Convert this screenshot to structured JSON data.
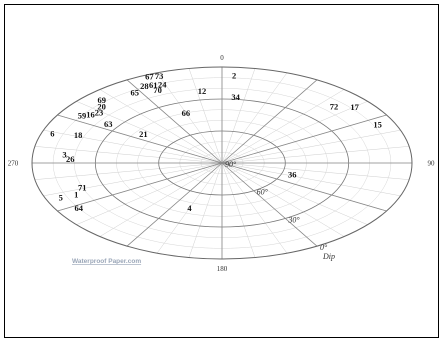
{
  "chart_data": {
    "type": "scatter",
    "projection": "polar stereonet (perspective)",
    "azimuth_labels": [
      {
        "text": "0",
        "az": 0
      },
      {
        "text": "90",
        "az": 90
      },
      {
        "text": "180",
        "az": 180
      },
      {
        "text": "270",
        "az": 270
      }
    ],
    "dip_labels": [
      {
        "text": "0°",
        "dip": 0
      },
      {
        "text": "30°",
        "dip": 30
      },
      {
        "text": "60°",
        "dip": 60
      },
      {
        "text": "90°",
        "dip": 90
      }
    ],
    "dip_axis_title": "Dip",
    "watermark": "Waterproof Paper.com",
    "points": [
      {
        "label": "2",
        "az": 4,
        "dip": 8
      },
      {
        "label": "12",
        "az": 352,
        "dip": 22
      },
      {
        "label": "34",
        "az": 6,
        "dip": 28
      },
      {
        "label": "66",
        "az": 340,
        "dip": 40
      },
      {
        "label": "72",
        "az": 45,
        "dip": 15
      },
      {
        "label": "17",
        "az": 50,
        "dip": 8
      },
      {
        "label": "15",
        "az": 64,
        "dip": 8
      },
      {
        "label": "36",
        "az": 108,
        "dip": 55
      },
      {
        "label": "67",
        "az": 337,
        "dip": 2
      },
      {
        "label": "73",
        "az": 340,
        "dip": 3
      },
      {
        "label": "28",
        "az": 333,
        "dip": 9
      },
      {
        "label": "61",
        "az": 336,
        "dip": 10
      },
      {
        "label": "24",
        "az": 339,
        "dip": 11
      },
      {
        "label": "65",
        "az": 328,
        "dip": 12
      },
      {
        "label": "70",
        "az": 336,
        "dip": 15
      },
      {
        "label": "69",
        "az": 316,
        "dip": 8
      },
      {
        "label": "20",
        "az": 313,
        "dip": 12
      },
      {
        "label": "59",
        "az": 304,
        "dip": 10
      },
      {
        "label": "16",
        "az": 306,
        "dip": 13
      },
      {
        "label": "23",
        "az": 309,
        "dip": 15
      },
      {
        "label": "63",
        "az": 304,
        "dip": 25
      },
      {
        "label": "21",
        "az": 306,
        "dip": 44
      },
      {
        "label": "6",
        "az": 289,
        "dip": 5
      },
      {
        "label": "18",
        "az": 291,
        "dip": 17
      },
      {
        "label": "3",
        "az": 276,
        "dip": 15
      },
      {
        "label": "26",
        "az": 273,
        "dip": 18
      },
      {
        "label": "5",
        "az": 247,
        "dip": 7
      },
      {
        "label": "1",
        "az": 247,
        "dip": 15
      },
      {
        "label": "71",
        "az": 251,
        "dip": 20
      },
      {
        "label": "64",
        "az": 238,
        "dip": 10
      },
      {
        "label": "4",
        "az": 200,
        "dip": 45
      }
    ]
  }
}
